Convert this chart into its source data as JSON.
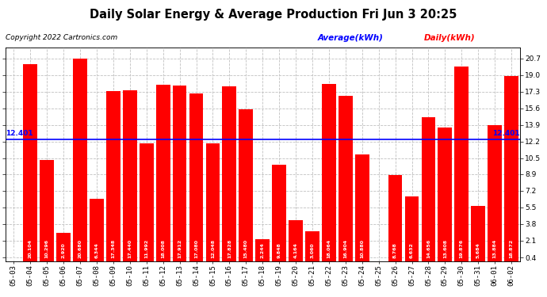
{
  "title": "Daily Solar Energy & Average Production Fri Jun 3 20:25",
  "copyright": "Copyright 2022 Cartronics.com",
  "legend_avg": "Average(kWh)",
  "legend_daily": "Daily(kWh)",
  "average_value": 12.401,
  "categories": [
    "05-03",
    "05-04",
    "05-05",
    "05-06",
    "05-07",
    "05-08",
    "05-09",
    "05-10",
    "05-11",
    "05-12",
    "05-13",
    "05-14",
    "05-15",
    "05-16",
    "05-17",
    "05-18",
    "05-19",
    "05-20",
    "05-21",
    "05-22",
    "05-23",
    "05-24",
    "05-25",
    "05-26",
    "05-27",
    "05-28",
    "05-29",
    "05-30",
    "05-31",
    "06-01",
    "06-02"
  ],
  "values": [
    0.0,
    20.104,
    10.296,
    2.92,
    20.68,
    6.344,
    17.348,
    17.44,
    11.992,
    18.008,
    17.912,
    17.08,
    12.048,
    17.828,
    15.48,
    2.244,
    9.848,
    4.164,
    3.06,
    18.064,
    16.904,
    10.88,
    0.0,
    8.768,
    6.632,
    14.656,
    13.608,
    19.876,
    5.684,
    13.884,
    18.872
  ],
  "bar_color": "#ff0000",
  "avg_line_color": "#0000ff",
  "background_color": "#ffffff",
  "grid_color": "#c0c0c0",
  "title_color": "#000000",
  "copyright_color": "#000000",
  "avg_label_color": "#0000ff",
  "daily_label_color": "#ff0000",
  "yticks": [
    0.4,
    2.1,
    3.8,
    5.5,
    7.2,
    8.9,
    10.5,
    12.2,
    13.9,
    15.6,
    17.3,
    19.0,
    20.7
  ],
  "ylim": [
    0.0,
    21.8
  ],
  "avg_label_value": "12.401",
  "title_fontsize": 10.5,
  "copyright_fontsize": 6.5,
  "legend_fontsize": 7.5,
  "tick_fontsize": 6.5,
  "bar_label_fontsize": 4.5
}
